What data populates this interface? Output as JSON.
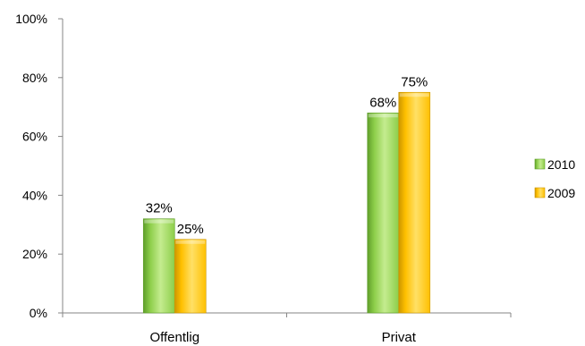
{
  "chart_data": {
    "type": "bar",
    "categories": [
      "Offentlig",
      "Privat"
    ],
    "series": [
      {
        "name": "2010",
        "values": [
          32,
          68
        ],
        "labels": [
          "32%",
          "68%"
        ],
        "color": "#8dce4a",
        "color_light": "#c4ec8f",
        "color_dark": "#5f9e2a"
      },
      {
        "name": "2009",
        "values": [
          25,
          75
        ],
        "labels": [
          "25%",
          "75%"
        ],
        "color": "#ffc000",
        "color_light": "#ffe066",
        "color_dark": "#cc9600"
      }
    ],
    "ylim": [
      0,
      100
    ],
    "yticks": [
      0,
      20,
      40,
      60,
      80,
      100
    ],
    "ytick_labels": [
      "0%",
      "20%",
      "40%",
      "60%",
      "80%",
      "100%"
    ],
    "legend_position": "right",
    "grid": false
  }
}
